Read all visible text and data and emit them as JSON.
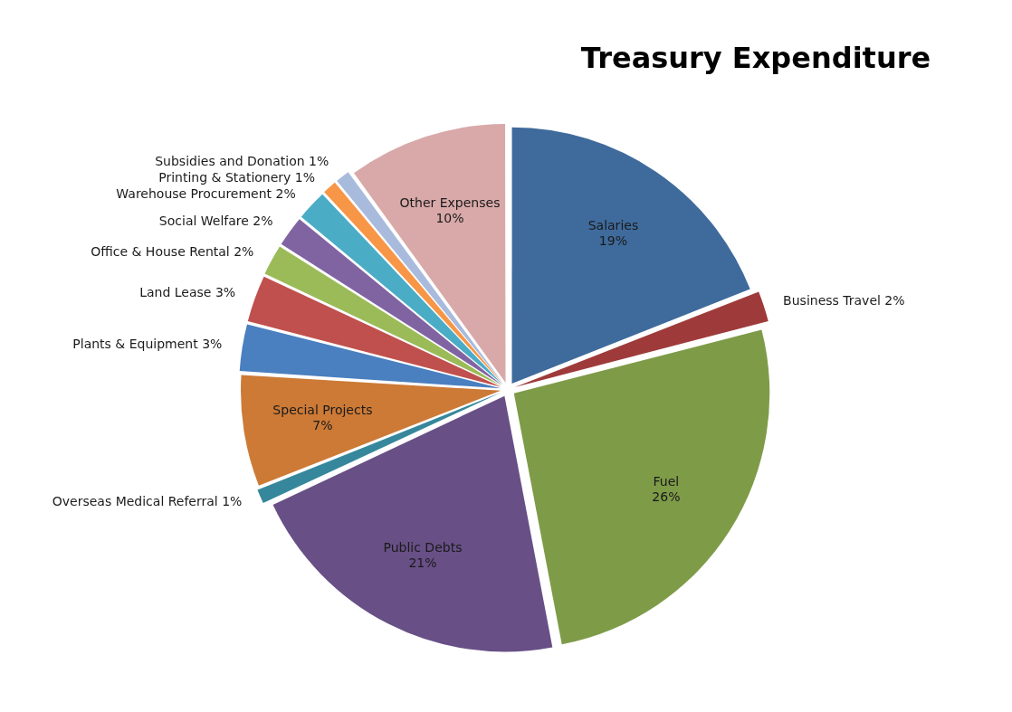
{
  "chart_data": {
    "type": "pie",
    "title": "Treasury Expenditure",
    "categories": [
      "Salaries",
      "Business Travel",
      "Fuel",
      "Public Debts",
      "Overseas Medical Referral",
      "Special Projects",
      "Plants & Equipment",
      "Land Lease",
      "Office & House Rental",
      "Social Welfare",
      "Warehouse Procurement",
      "Printing & Stationery",
      "Subsidies and Donation",
      "Other Expenses"
    ],
    "values": [
      19,
      2,
      26,
      21,
      1,
      7,
      3,
      3,
      2,
      2,
      2,
      1,
      1,
      10
    ],
    "colors": [
      "#3f6a9c",
      "#9e3b3a",
      "#7e9b48",
      "#684f86",
      "#36879b",
      "#cc7a36",
      "#4a7fc0",
      "#c0504d",
      "#9bbb59",
      "#8064a2",
      "#4bacc6",
      "#f79646",
      "#a9bbdd",
      "#d9a9a9"
    ],
    "value_labels": [
      "19%",
      "2%",
      "26%",
      "21%",
      "1%",
      "7%",
      "3%",
      "3%",
      "2%",
      "2%",
      "2%",
      "1%",
      "1%",
      "10%"
    ]
  }
}
